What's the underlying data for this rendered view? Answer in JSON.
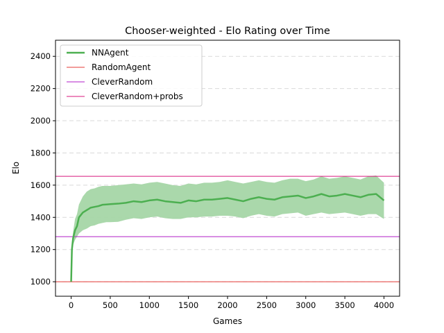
{
  "chart_data": {
    "type": "line",
    "title": "Chooser-weighted - Elo Rating over Time",
    "xlabel": "Games",
    "ylabel": "Elo",
    "xlim": [
      -200,
      4200
    ],
    "ylim": [
      910,
      2500
    ],
    "xticks": [
      0,
      500,
      1000,
      1500,
      2000,
      2500,
      3000,
      3500,
      4000
    ],
    "yticks": [
      1000,
      1200,
      1400,
      1600,
      1800,
      2000,
      2200,
      2400
    ],
    "grid": "y-dashed",
    "legend_position": "top-left",
    "series": [
      {
        "name": "NNAgent",
        "color": "#4caf50",
        "band_color": "#a5d6a7",
        "x": [
          0,
          10,
          25,
          50,
          75,
          100,
          150,
          200,
          250,
          300,
          350,
          400,
          450,
          500,
          600,
          700,
          800,
          900,
          1000,
          1100,
          1200,
          1300,
          1400,
          1500,
          1600,
          1700,
          1800,
          1900,
          2000,
          2100,
          2200,
          2300,
          2400,
          2500,
          2600,
          2700,
          2800,
          2900,
          3000,
          3100,
          3200,
          3300,
          3400,
          3500,
          3600,
          3700,
          3800,
          3900,
          4000
        ],
        "y": [
          1000,
          1200,
          1270,
          1320,
          1345,
          1400,
          1430,
          1445,
          1460,
          1465,
          1470,
          1478,
          1480,
          1482,
          1485,
          1490,
          1500,
          1495,
          1505,
          1510,
          1500,
          1495,
          1490,
          1505,
          1500,
          1510,
          1510,
          1515,
          1520,
          1510,
          1500,
          1515,
          1525,
          1515,
          1510,
          1525,
          1530,
          1535,
          1520,
          1530,
          1545,
          1530,
          1535,
          1545,
          1535,
          1525,
          1540,
          1545,
          1505
        ],
        "lower": [
          1000,
          1170,
          1230,
          1260,
          1280,
          1300,
          1320,
          1330,
          1345,
          1350,
          1360,
          1365,
          1370,
          1370,
          1372,
          1385,
          1395,
          1390,
          1400,
          1405,
          1395,
          1390,
          1390,
          1400,
          1400,
          1405,
          1405,
          1410,
          1410,
          1405,
          1395,
          1410,
          1420,
          1410,
          1405,
          1420,
          1425,
          1430,
          1410,
          1420,
          1430,
          1420,
          1425,
          1430,
          1420,
          1410,
          1420,
          1420,
          1390
        ],
        "upper": [
          1000,
          1240,
          1310,
          1390,
          1420,
          1480,
          1530,
          1560,
          1575,
          1580,
          1590,
          1595,
          1595,
          1595,
          1600,
          1605,
          1610,
          1605,
          1615,
          1620,
          1610,
          1600,
          1595,
          1610,
          1605,
          1615,
          1615,
          1620,
          1630,
          1620,
          1610,
          1620,
          1630,
          1620,
          1615,
          1630,
          1640,
          1640,
          1625,
          1635,
          1655,
          1640,
          1645,
          1655,
          1645,
          1635,
          1655,
          1660,
          1615
        ]
      },
      {
        "name": "RandomAgent",
        "color": "#e53935",
        "hline": 1000
      },
      {
        "name": "CleverRandom",
        "color": "#b01dc8",
        "hline": 1280
      },
      {
        "name": "CleverRandom+probs",
        "color": "#d8177e",
        "hline": 1655
      }
    ]
  }
}
